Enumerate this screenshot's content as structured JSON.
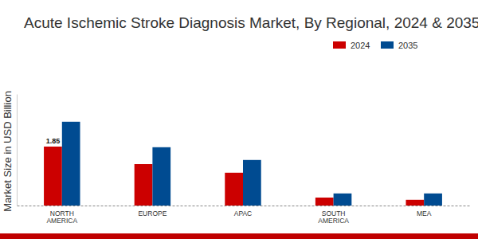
{
  "chart_data": {
    "type": "bar",
    "title": "Acute Ischemic Stroke Diagnosis Market, By Regional, 2024 & 2035",
    "y_label": "Market Size in USD Billion",
    "categories": [
      "NORTH AMERICA",
      "EUROPE",
      "APAC",
      "SOUTH AMERICA",
      "MEA"
    ],
    "series": [
      {
        "name": "2024",
        "color": "#cc0000",
        "values": [
          1.85,
          1.3,
          1.03,
          0.25,
          0.18
        ],
        "value_labels": [
          "1.85",
          null,
          null,
          null,
          null
        ]
      },
      {
        "name": "2035",
        "color": "#004b91",
        "values": [
          2.63,
          1.83,
          1.43,
          0.38,
          0.38
        ]
      }
    ],
    "ylim": [
      0,
      3.5
    ],
    "tick_labels": "x",
    "legend": "top-right",
    "grid": false
  }
}
